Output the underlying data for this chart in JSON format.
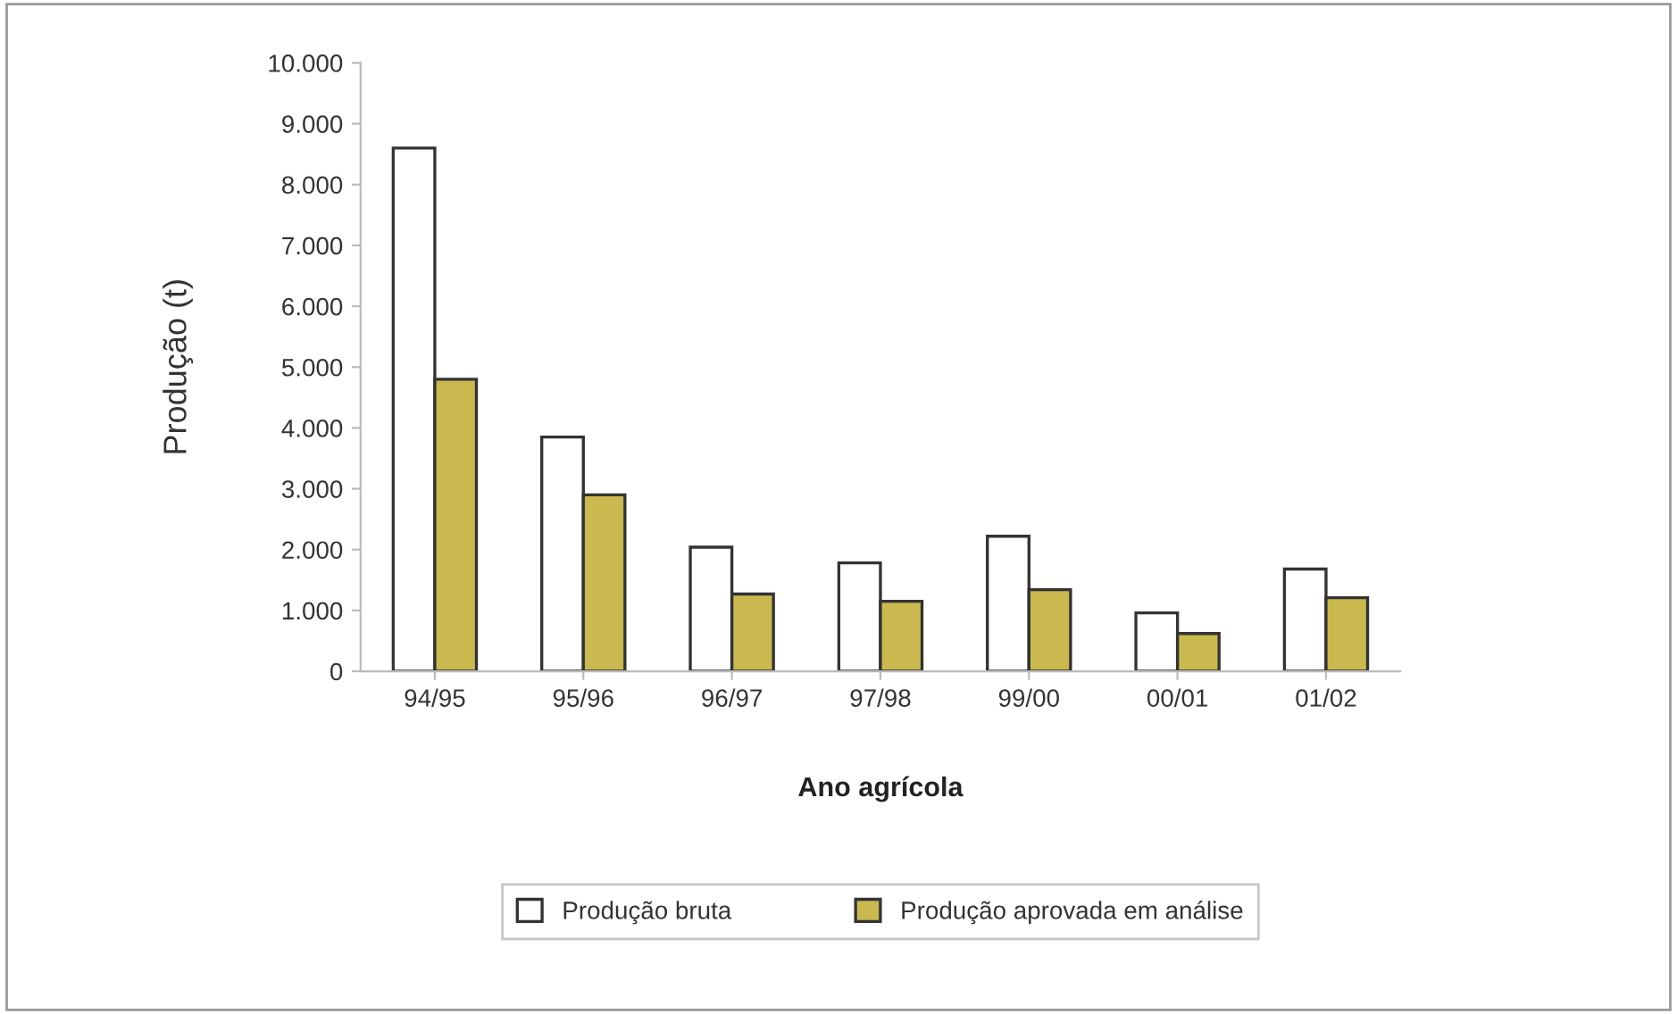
{
  "chart_data": {
    "type": "bar",
    "xlabel": "Ano agrícola",
    "ylabel": "Produção (t)",
    "categories": [
      "94/95",
      "95/96",
      "96/97",
      "97/98",
      "99/00",
      "00/01",
      "01/02"
    ],
    "series": [
      {
        "name": "Produção bruta",
        "color": "#ffffff",
        "values": [
          8600,
          3850,
          2040,
          1780,
          2220,
          960,
          1680
        ]
      },
      {
        "name": "Produção aprovada em análise",
        "color": "#c9b94e",
        "values": [
          4800,
          2900,
          1270,
          1150,
          1340,
          620,
          1210
        ]
      }
    ],
    "ylim": [
      0,
      10000
    ],
    "yticks": [
      {
        "value": 0,
        "label": "0"
      },
      {
        "value": 1000,
        "label": "1.000"
      },
      {
        "value": 2000,
        "label": "2.000"
      },
      {
        "value": 3000,
        "label": "3.000"
      },
      {
        "value": 4000,
        "label": "4.000"
      },
      {
        "value": 5000,
        "label": "5.000"
      },
      {
        "value": 6000,
        "label": "6.000"
      },
      {
        "value": 7000,
        "label": "7.000"
      },
      {
        "value": 8000,
        "label": "8.000"
      },
      {
        "value": 9000,
        "label": "9.000"
      },
      {
        "value": 10000,
        "label": "10.000"
      }
    ],
    "grid": false,
    "legend": "bottom"
  }
}
